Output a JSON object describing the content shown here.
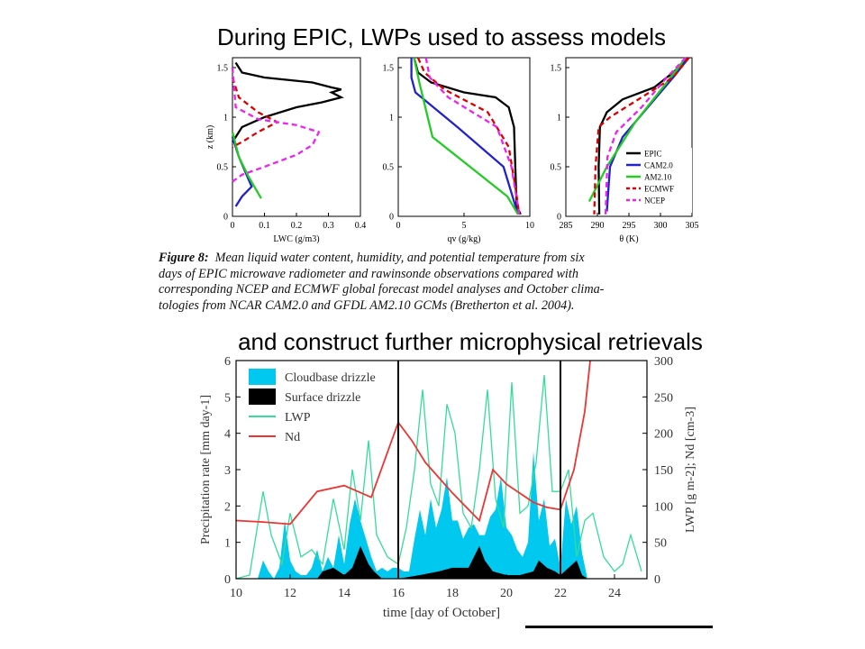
{
  "slide": {
    "title": "During EPIC, LWPs used to assess models",
    "subtitle": "and construct further microphysical retrievals"
  },
  "figure8": {
    "caption_label": "Figure 8:",
    "caption_lines": [
      "Mean liquid water content, humidity, and potential temperature from six",
      "days of EPIC microwave radiometer and rawinsonde observations compared with",
      "corresponding NCEP and ECMWF global forecast model analyses and October clima-",
      "tologies from NCAR CAM2.0 and GFDL AM2.10 GCMs (Bretherton et al. 2004)."
    ]
  },
  "chart_data": [
    {
      "type": "line",
      "panel": "LWC",
      "xlabel": "LWC (g/m3)",
      "ylabel": "z (km)",
      "xlim": [
        0,
        0.4
      ],
      "ylim": [
        0,
        1.6
      ],
      "xticks": [
        "0",
        "0.1",
        "0.2",
        "0.3",
        "0.4"
      ],
      "yticks": [
        "0",
        "0.5",
        "1",
        "1.5"
      ],
      "series": [
        {
          "name": "EPIC",
          "color": "#000000",
          "dash": "solid",
          "points": [
            [
              0.01,
              1.55
            ],
            [
              0.03,
              1.45
            ],
            [
              0.1,
              1.4
            ],
            [
              0.25,
              1.35
            ],
            [
              0.31,
              1.3
            ],
            [
              0.34,
              1.28
            ],
            [
              0.31,
              1.25
            ],
            [
              0.34,
              1.2
            ],
            [
              0.28,
              1.15
            ],
            [
              0.2,
              1.1
            ],
            [
              0.1,
              1.0
            ],
            [
              0.03,
              0.9
            ],
            [
              0.01,
              0.8
            ],
            [
              0.0,
              0.75
            ]
          ]
        },
        {
          "name": "CAM2.0",
          "color": "#2222cc",
          "dash": "solid",
          "points": [
            [
              0.0,
              0.8
            ],
            [
              0.02,
              0.6
            ],
            [
              0.04,
              0.45
            ],
            [
              0.06,
              0.3
            ],
            [
              0.03,
              0.2
            ],
            [
              0.01,
              0.1
            ]
          ]
        },
        {
          "name": "AM2.10",
          "color": "#22cc22",
          "dash": "solid",
          "points": [
            [
              0.0,
              0.85
            ],
            [
              0.02,
              0.6
            ],
            [
              0.05,
              0.4
            ],
            [
              0.09,
              0.18
            ]
          ]
        },
        {
          "name": "ECMWF",
          "color": "#dd0000",
          "dash": "dashed",
          "points": [
            [
              0.0,
              1.4
            ],
            [
              0.02,
              1.2
            ],
            [
              0.08,
              1.05
            ],
            [
              0.14,
              0.95
            ],
            [
              0.08,
              0.85
            ],
            [
              0.03,
              0.75
            ],
            [
              0.0,
              0.7
            ]
          ]
        },
        {
          "name": "NCEP",
          "color": "#ee22ee",
          "dash": "dashed",
          "points": [
            [
              0.0,
              1.5
            ],
            [
              0.01,
              1.1
            ],
            [
              0.08,
              0.98
            ],
            [
              0.2,
              0.92
            ],
            [
              0.27,
              0.85
            ],
            [
              0.25,
              0.72
            ],
            [
              0.2,
              0.62
            ],
            [
              0.1,
              0.5
            ],
            [
              0.03,
              0.42
            ],
            [
              0.0,
              0.35
            ]
          ]
        }
      ]
    },
    {
      "type": "line",
      "panel": "qv",
      "xlabel": "qv (g/kg)",
      "ylabel": "",
      "xlim": [
        0,
        10
      ],
      "ylim": [
        0,
        1.6
      ],
      "xticks": [
        "0",
        "5",
        "10"
      ],
      "yticks": [
        "0",
        "0.5",
        "1",
        "1.5"
      ],
      "series": [
        {
          "name": "EPIC",
          "color": "#000000",
          "dash": "solid",
          "points": [
            [
              1.2,
              1.6
            ],
            [
              1.5,
              1.45
            ],
            [
              2.5,
              1.35
            ],
            [
              5,
              1.25
            ],
            [
              7.4,
              1.2
            ],
            [
              8.4,
              1.1
            ],
            [
              8.8,
              0.9
            ],
            [
              8.9,
              0.5
            ],
            [
              9,
              0.1
            ],
            [
              9.3,
              0.02
            ]
          ]
        },
        {
          "name": "CAM2.0",
          "color": "#2222cc",
          "dash": "solid",
          "points": [
            [
              1.0,
              1.6
            ],
            [
              1.0,
              1.4
            ],
            [
              1.3,
              1.25
            ],
            [
              4.5,
              0.9
            ],
            [
              8,
              0.5
            ],
            [
              9.1,
              0.02
            ]
          ]
        },
        {
          "name": "AM2.10",
          "color": "#22cc22",
          "dash": "solid",
          "points": [
            [
              1.2,
              1.6
            ],
            [
              1.6,
              1.35
            ],
            [
              2.6,
              0.8
            ],
            [
              8.3,
              0.2
            ],
            [
              9.1,
              0.02
            ]
          ]
        },
        {
          "name": "ECMWF",
          "color": "#dd0000",
          "dash": "dashed",
          "points": [
            [
              1.5,
              1.6
            ],
            [
              2,
              1.45
            ],
            [
              3.5,
              1.28
            ],
            [
              6.8,
              1.05
            ],
            [
              8.4,
              0.7
            ],
            [
              8.9,
              0.3
            ],
            [
              9.2,
              0.02
            ]
          ]
        },
        {
          "name": "NCEP",
          "color": "#ee22ee",
          "dash": "dashed",
          "points": [
            [
              2.1,
              1.6
            ],
            [
              2.4,
              1.4
            ],
            [
              3.8,
              1.2
            ],
            [
              7.5,
              0.9
            ],
            [
              8.6,
              0.5
            ],
            [
              9.2,
              0.02
            ]
          ]
        }
      ]
    },
    {
      "type": "line",
      "panel": "theta",
      "xlabel": "θ (K)",
      "ylabel": "",
      "xlim": [
        285,
        305
      ],
      "ylim": [
        0,
        1.6
      ],
      "xticks": [
        "285",
        "290",
        "295",
        "300",
        "305"
      ],
      "yticks": [
        "0",
        "0.5",
        "1",
        "1.5"
      ],
      "legend": "bottom-right",
      "series": [
        {
          "name": "EPIC",
          "color": "#000000",
          "dash": "solid",
          "points": [
            [
              304.5,
              1.6
            ],
            [
              302,
              1.45
            ],
            [
              299,
              1.3
            ],
            [
              294,
              1.18
            ],
            [
              291.5,
              1.05
            ],
            [
              290.4,
              0.9
            ],
            [
              290.2,
              0.5
            ],
            [
              290.3,
              0.02
            ]
          ]
        },
        {
          "name": "CAM2.0",
          "color": "#2222cc",
          "dash": "solid",
          "points": [
            [
              304.5,
              1.6
            ],
            [
              302,
              1.4
            ],
            [
              298,
              1.1
            ],
            [
              294,
              0.8
            ],
            [
              292,
              0.5
            ],
            [
              291.5,
              0.05
            ]
          ]
        },
        {
          "name": "AM2.10",
          "color": "#22cc22",
          "dash": "solid",
          "points": [
            [
              304,
              1.6
            ],
            [
              301,
              1.35
            ],
            [
              296,
              0.95
            ],
            [
              291.5,
              0.5
            ],
            [
              288.7,
              0.15
            ]
          ]
        },
        {
          "name": "ECMWF",
          "color": "#dd0000",
          "dash": "dashed",
          "points": [
            [
              304.5,
              1.6
            ],
            [
              302,
              1.4
            ],
            [
              297,
              1.2
            ],
            [
              292,
              1.0
            ],
            [
              290.2,
              0.9
            ],
            [
              289.7,
              0.5
            ],
            [
              289.5,
              0.02
            ]
          ]
        },
        {
          "name": "NCEP",
          "color": "#ee22ee",
          "dash": "dashed",
          "points": [
            [
              304,
              1.6
            ],
            [
              301,
              1.4
            ],
            [
              297,
              1.1
            ],
            [
              293,
              0.85
            ],
            [
              291.6,
              0.6
            ],
            [
              291.3,
              0.02
            ]
          ]
        }
      ]
    },
    {
      "type": "area",
      "panel": "timeseries",
      "xlabel": "time [day of October]",
      "ylabel": "Precipitation rate [mm day-1]",
      "ylabel_right": "LWP [g m-2]; Nd [cm-3]",
      "xlim": [
        10,
        25.2
      ],
      "ylim": [
        0,
        6
      ],
      "ylim_right": [
        0,
        300
      ],
      "xticks": [
        "10",
        "12",
        "14",
        "16",
        "18",
        "20",
        "22",
        "24"
      ],
      "yticks": [
        "0",
        "1",
        "2",
        "3",
        "4",
        "5",
        "6"
      ],
      "yticks_right": [
        "0",
        "50",
        "100",
        "150",
        "200",
        "250",
        "300"
      ],
      "vlines": [
        16,
        22
      ],
      "legend": "top-left",
      "series": [
        {
          "name": "Cloudbase drizzle",
          "color": "#00c8ee",
          "axis": "left",
          "kind": "area",
          "x": [
            10,
            10.8,
            11,
            11.2,
            11.4,
            11.6,
            11.8,
            12,
            12.2,
            12.4,
            12.6,
            12.8,
            13,
            13.2,
            13.4,
            13.6,
            13.8,
            14,
            14.2,
            14.4,
            14.6,
            14.8,
            15,
            15.2,
            15.4,
            15.6,
            15.8,
            16,
            16.2,
            16.4,
            16.6,
            16.8,
            17,
            17.2,
            17.4,
            17.6,
            17.8,
            18,
            18.2,
            18.4,
            18.6,
            18.8,
            19,
            19.2,
            19.4,
            19.6,
            19.8,
            20,
            20.2,
            20.4,
            20.6,
            20.8,
            21,
            21.2,
            21.4,
            21.6,
            21.8,
            22,
            22.2,
            22.4,
            22.6,
            22.8,
            23
          ],
          "values": [
            0,
            0,
            0.5,
            0.2,
            0,
            0.3,
            1.6,
            0.5,
            0.2,
            0.1,
            0.1,
            0.3,
            0.8,
            0.2,
            0.6,
            0.3,
            1.2,
            0.4,
            1.5,
            2.2,
            1.6,
            1.1,
            0.6,
            0.2,
            0.3,
            0.2,
            0.3,
            0.3,
            0.2,
            0.2,
            1.1,
            1.9,
            1.2,
            2.2,
            1.4,
            1.9,
            2.8,
            1.6,
            1.6,
            1.1,
            1.4,
            1.5,
            1.2,
            1.2,
            1.7,
            1.9,
            2.8,
            1.4,
            1.2,
            0.8,
            0.6,
            1.0,
            3.5,
            1.6,
            2.2,
            0.9,
            1.1,
            0.3,
            2.2,
            1.5,
            2.0,
            0.7,
            0
          ]
        },
        {
          "name": "Surface drizzle",
          "color": "#000000",
          "axis": "left",
          "kind": "area",
          "x": [
            10,
            12,
            13,
            13.2,
            13.6,
            14,
            14.3,
            14.6,
            14.9,
            15.1,
            15.4,
            16,
            16.8,
            17.5,
            18,
            18.6,
            19,
            19.2,
            19.5,
            20,
            20.5,
            21,
            21.2,
            21.5,
            21.8,
            22,
            22.3,
            22.6,
            22.8,
            23
          ],
          "values": [
            0,
            0,
            0,
            0.2,
            0.3,
            0.1,
            0.3,
            0.9,
            0.4,
            0.2,
            0,
            0,
            0.1,
            0.2,
            0.3,
            0.3,
            0.9,
            0.5,
            0.2,
            0.1,
            0.1,
            0.2,
            0.5,
            0.3,
            0.2,
            0.1,
            0.3,
            0.5,
            0.1,
            0
          ]
        },
        {
          "name": "LWP",
          "color": "#33dd99",
          "axis": "right",
          "kind": "line",
          "x": [
            10,
            10.5,
            11,
            11.3,
            11.7,
            12,
            12.4,
            12.8,
            13.2,
            13.6,
            14,
            14.3,
            14.6,
            14.9,
            15.2,
            15.6,
            16,
            16.3,
            16.6,
            16.9,
            17.2,
            17.5,
            17.8,
            18.1,
            18.4,
            18.7,
            19,
            19.3,
            19.6,
            19.9,
            20.2,
            20.5,
            20.8,
            21.1,
            21.4,
            21.7,
            22,
            22.3,
            22.6,
            22.9,
            23.2,
            23.6,
            24,
            24.3,
            24.6,
            25
          ],
          "values": [
            0,
            5,
            120,
            60,
            20,
            90,
            30,
            40,
            20,
            110,
            40,
            150,
            80,
            190,
            60,
            30,
            20,
            70,
            150,
            260,
            130,
            100,
            240,
            200,
            90,
            70,
            150,
            260,
            110,
            70,
            270,
            90,
            100,
            160,
            280,
            120,
            120,
            150,
            30,
            80,
            90,
            30,
            10,
            20,
            60,
            10
          ]
        },
        {
          "name": "Nd",
          "color": "#ee3333",
          "axis": "right",
          "kind": "line",
          "x": [
            10,
            11,
            12,
            13,
            14,
            15,
            16,
            16.5,
            17,
            18,
            19,
            19.5,
            20,
            21,
            21.5,
            22,
            22.5,
            22.9,
            23.1
          ],
          "values": [
            80,
            78,
            75,
            120,
            128,
            112,
            215,
            190,
            160,
            118,
            80,
            150,
            130,
            105,
            98,
            95,
            150,
            230,
            300
          ]
        }
      ]
    }
  ]
}
